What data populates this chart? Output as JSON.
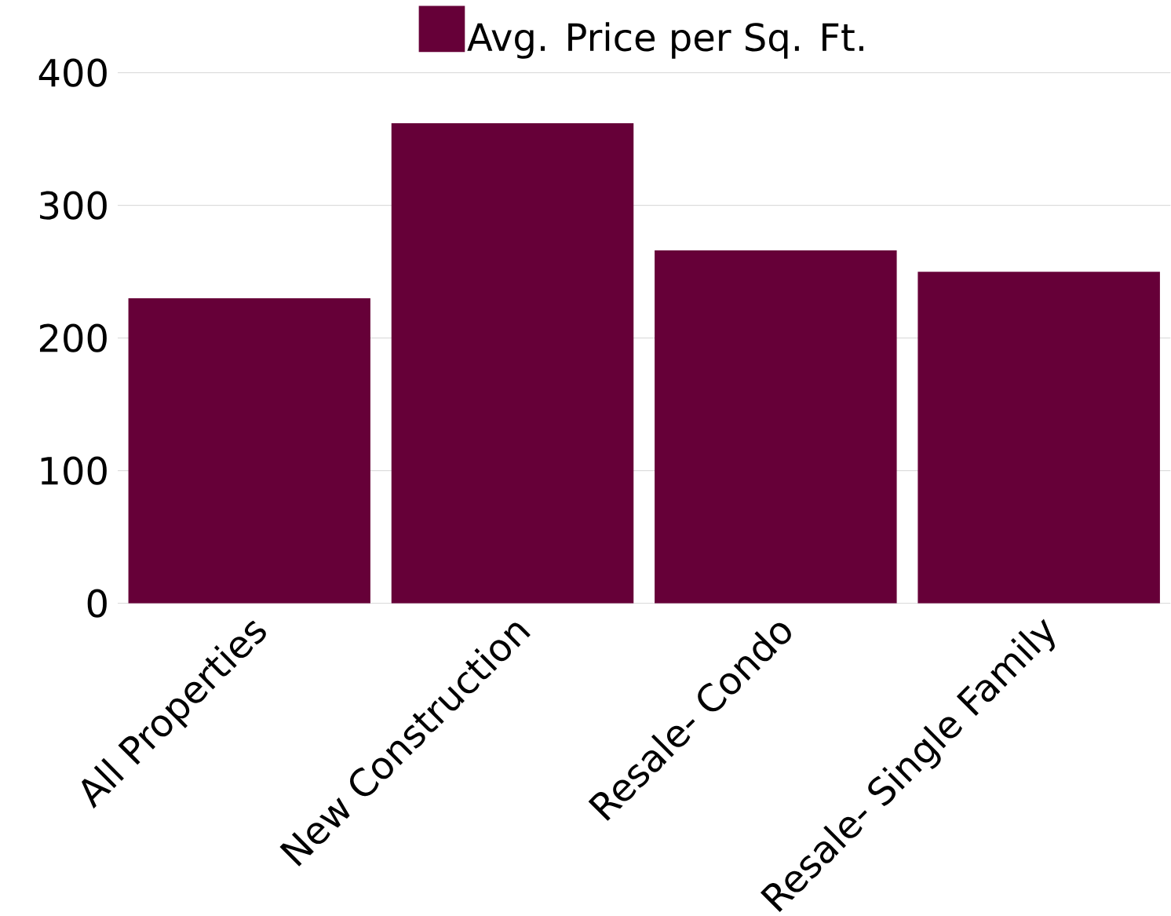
{
  "chart_data": {
    "type": "bar",
    "categories": [
      "All Properties",
      "New Construction",
      "Resale- Condo",
      "Resale- Single Family"
    ],
    "series": [
      {
        "name": "Avg. Price per Sq. Ft.",
        "color": "#660038",
        "values": [
          230,
          362,
          266,
          250
        ]
      }
    ],
    "ylim": [
      0,
      400
    ],
    "yticks": [
      0,
      100,
      200,
      300,
      400
    ],
    "grid": "y",
    "legend": "top"
  }
}
